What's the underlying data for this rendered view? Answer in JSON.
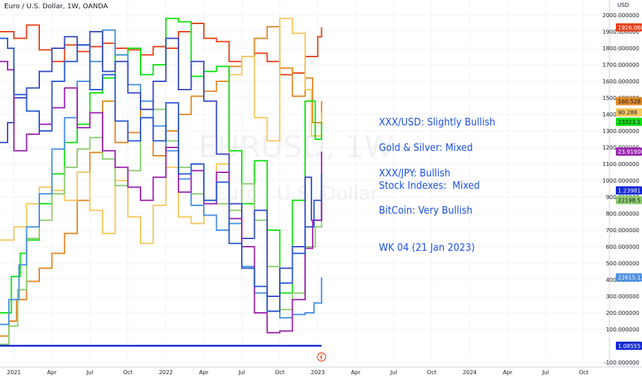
{
  "header": {
    "title": "Euro / U.S. Dollar, 1W, OANDA"
  },
  "annotations": {
    "line1": "XXX/USD: Slightly Bullish",
    "line2": "Gold & Silver: Mixed",
    "line3": "XXX/JPY: Bullish",
    "line4": "Stock Indexes:  Mixed",
    "line5": "BitCoin: Very Bullish",
    "line6": "WK 04 (21 Jan 2023)"
  },
  "watermark": {
    "text": "EURUSD, 1W",
    "subtext": "Euro / U.S. Dollar"
  },
  "colors": {
    "background": "#ffffff",
    "grid": "#f0f3fa",
    "axis": "#d1d4dc",
    "annotation": "#1e53e5"
  },
  "chart_data": {
    "type": "line",
    "title": "Euro / U.S. Dollar, 1W, OANDA",
    "y_unit": "USD",
    "ylim": [
      -100,
      2000
    ],
    "y_ticks": [
      "-100.000000",
      "100.000000",
      "200.000000",
      "300.000000",
      "400.000000",
      "500.000000",
      "600.000000",
      "700.000000",
      "800.000000",
      "900.000000",
      "1000.000000",
      "1100.000000",
      "1200.000000",
      "1300.000000",
      "1400.000000",
      "1500.000000",
      "1600.000000",
      "1700.000000",
      "1800.000000",
      "1900.000000",
      "2000.000000"
    ],
    "x_ticks": [
      "2021",
      "Apr",
      "Jul",
      "Oct",
      "2022",
      "Apr",
      "Jul",
      "Oct",
      "2023",
      "Apr",
      "Jul",
      "Oct",
      "2024",
      "Apr",
      "Jul",
      "Oct"
    ],
    "x_tick_months": [
      12,
      15,
      18,
      21,
      24,
      27,
      30,
      33,
      36,
      39,
      42,
      45,
      48,
      51,
      54,
      57
    ],
    "x_range_months": [
      10.9,
      59
    ],
    "grid": true,
    "price_labels": [
      {
        "value": "1926.060000",
        "color": "#e8431b",
        "level": 1926
      },
      {
        "value": "160.528",
        "color": "#e08a28",
        "level": 1480
      },
      {
        "value": "90.288",
        "color": "#f6c85f",
        "level": 1412
      },
      {
        "value": "23323.1",
        "color": "#14e014",
        "level": 1355
      },
      {
        "value": "23.91900",
        "color": "#9c27b0",
        "level": 1175
      },
      {
        "value": "1.23981",
        "color": "#1428d4",
        "level": 940
      },
      {
        "value": "22198.5",
        "color": "#8ccd6e",
        "level": 882
      },
      {
        "value": "22615.12",
        "color": "#4a90e2",
        "level": 414
      },
      {
        "value": "1.08555",
        "color": "#1428d4",
        "level": 1
      }
    ],
    "series": [
      {
        "color": "#e8431b",
        "x": [
          10.9,
          12,
          13,
          14,
          15,
          16,
          17,
          18,
          19,
          20,
          21,
          22,
          23,
          24,
          25,
          26,
          27,
          28,
          29,
          30,
          31,
          32,
          33,
          34,
          35,
          36,
          36.3
        ],
        "y": [
          1900,
          1860,
          1940,
          1790,
          1720,
          1820,
          1780,
          1810,
          1830,
          1800,
          1790,
          1760,
          1810,
          1800,
          1900,
          1950,
          1860,
          1840,
          1720,
          1750,
          1770,
          1720,
          1640,
          1650,
          1750,
          1870,
          1926
        ]
      },
      {
        "color": "#e08a28",
        "x": [
          10.9,
          11.6,
          12.2,
          13,
          14,
          15,
          16,
          17,
          18,
          19,
          20,
          21,
          22,
          23,
          24,
          25,
          26,
          27,
          28,
          29,
          30,
          31,
          32,
          33,
          34,
          35,
          35.6,
          36.3
        ],
        "y": [
          60,
          150,
          280,
          390,
          470,
          560,
          680,
          880,
          1170,
          1480,
          1230,
          1290,
          1430,
          1150,
          1300,
          1400,
          1510,
          1540,
          1600,
          1690,
          1750,
          1860,
          1930,
          1680,
          1510,
          1620,
          1350,
          1480
        ]
      },
      {
        "color": "#f6c85f",
        "x": [
          10.9,
          12,
          13,
          14,
          15,
          16,
          17,
          18,
          19,
          20,
          21,
          22,
          23,
          24,
          25,
          26,
          27,
          28,
          29,
          30,
          31,
          32,
          33,
          34,
          35,
          35.5,
          36.3
        ],
        "y": [
          640,
          720,
          860,
          960,
          940,
          880,
          1050,
          820,
          680,
          1000,
          780,
          620,
          850,
          1080,
          780,
          740,
          880,
          1100,
          1640,
          1750,
          1380,
          1240,
          1980,
          1890,
          1550,
          1270,
          1412
        ]
      },
      {
        "color": "#14e014",
        "x": [
          10.9,
          11.8,
          12.5,
          13,
          14,
          15,
          16,
          17,
          18,
          19,
          20,
          21,
          22,
          23,
          24,
          25,
          26,
          27,
          28,
          29,
          30,
          31,
          32,
          33,
          34,
          35,
          35.8,
          36.3
        ],
        "y": [
          200,
          420,
          560,
          640,
          860,
          1040,
          1230,
          1340,
          1530,
          1620,
          1760,
          1800,
          1640,
          1700,
          1980,
          1960,
          1630,
          1660,
          1690,
          1180,
          860,
          1120,
          700,
          320,
          880,
          1480,
          1250,
          1355
        ]
      },
      {
        "color": "#8ccd6e",
        "x": [
          10.9,
          11.6,
          12.3,
          13,
          14,
          15,
          16,
          17,
          18,
          19,
          20,
          21,
          22,
          23,
          24,
          25,
          26,
          27,
          28,
          29,
          30,
          31,
          32,
          33,
          34,
          35,
          35.8,
          36.3
        ],
        "y": [
          10,
          120,
          340,
          650,
          760,
          920,
          1080,
          1190,
          1260,
          1130,
          970,
          1060,
          1380,
          1430,
          1240,
          1080,
          920,
          880,
          860,
          820,
          980,
          760,
          480,
          220,
          320,
          600,
          720,
          882
        ]
      },
      {
        "color": "#4a90e2",
        "x": [
          10.9,
          11.6,
          12.4,
          13,
          14,
          15,
          16,
          17,
          18,
          19,
          20,
          21,
          22,
          23,
          24,
          25,
          26,
          27,
          28,
          29,
          30,
          31,
          32,
          33,
          34,
          35,
          35.7,
          36.3
        ],
        "y": [
          130,
          280,
          490,
          720,
          920,
          1190,
          1380,
          1600,
          1720,
          1910,
          1760,
          1580,
          1480,
          1330,
          1180,
          1010,
          850,
          790,
          700,
          740,
          480,
          320,
          210,
          170,
          190,
          200,
          260,
          414
        ]
      },
      {
        "color": "#3c4fc8",
        "x": [
          10.9,
          11.5,
          12,
          13,
          14,
          15,
          16,
          17,
          18,
          19,
          20,
          21,
          22,
          23,
          24,
          25,
          26,
          27,
          28,
          29,
          30,
          31,
          32,
          33,
          34,
          35,
          35.5,
          36.3
        ],
        "y": [
          1230,
          1350,
          1500,
          1560,
          1660,
          1800,
          1870,
          1820,
          1900,
          1660,
          1720,
          1530,
          1430,
          1600,
          1860,
          1550,
          1720,
          1480,
          1160,
          860,
          650,
          820,
          300,
          470,
          600,
          1020,
          760,
          940
        ]
      },
      {
        "color": "#9c27b0",
        "x": [
          10.9,
          11.5,
          12,
          13,
          14,
          15,
          16,
          17,
          18,
          19,
          20,
          21,
          22,
          23,
          24,
          25,
          26,
          27,
          28,
          29,
          30,
          31,
          32,
          33,
          34,
          35,
          35.6,
          36.3
        ],
        "y": [
          1720,
          1670,
          1180,
          1280,
          1340,
          1440,
          1560,
          1320,
          1410,
          1180,
          1080,
          960,
          880,
          1020,
          1200,
          930,
          1060,
          860,
          1050,
          770,
          600,
          200,
          80,
          90,
          280,
          590,
          760,
          1175
        ]
      },
      {
        "color": "#2f5bd2",
        "x": [
          10.9,
          11.5,
          12,
          13,
          14,
          15,
          16,
          17,
          18,
          19,
          20,
          21,
          22,
          23,
          24,
          25,
          26,
          27,
          28,
          29,
          30,
          31,
          32,
          33,
          34,
          35,
          35.7,
          36.3
        ],
        "y": [
          1860,
          1800,
          1520,
          1420,
          1300,
          1600,
          1720,
          1820,
          1550,
          1640,
          1360,
          1240,
          1380,
          1240,
          1470,
          1040,
          1100,
          880,
          990,
          620,
          470,
          360,
          210,
          380,
          560,
          720,
          880,
          1040
        ]
      }
    ],
    "flat_line": {
      "color": "#1428d4",
      "value": 1,
      "x": [
        10.9,
        36.3
      ]
    }
  }
}
